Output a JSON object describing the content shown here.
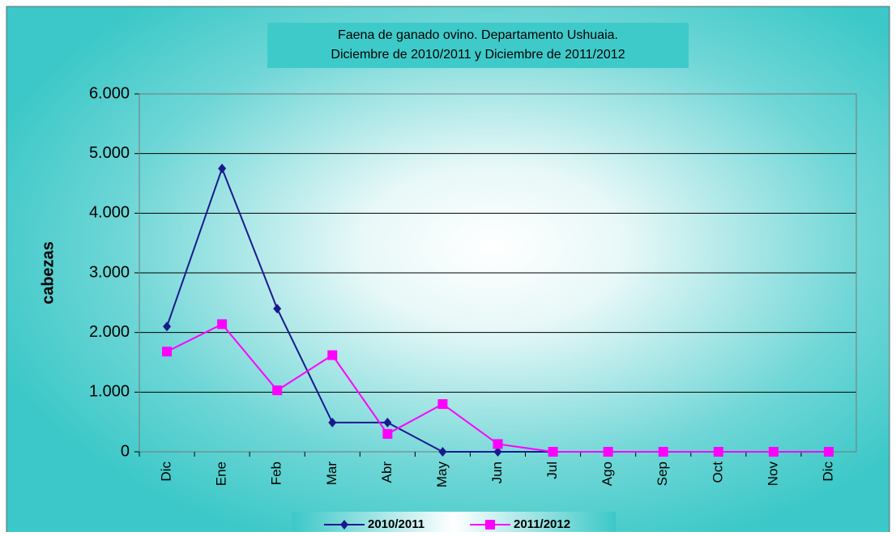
{
  "chart_data": {
    "type": "line",
    "title": [
      "Faena de ganado ovino. Departamento Ushuaia.",
      "Diciembre de 2010/2011  y Diciembre de 2011/2012"
    ],
    "ylabel": "cabezas",
    "categories": [
      "Dic",
      "Ene",
      "Feb",
      "Mar",
      "Abr",
      "May",
      "Jun",
      "Jul",
      "Ago",
      "Sep",
      "Oct",
      "Nov",
      "Dic"
    ],
    "series": [
      {
        "name": "2010/2011",
        "color": "#1a1a8c",
        "marker": "diamond",
        "values": [
          2100,
          4750,
          2400,
          490,
          490,
          0,
          0,
          0,
          0,
          0,
          0,
          0,
          0
        ]
      },
      {
        "name": "2011/2012",
        "color": "#ff00ff",
        "marker": "square",
        "values": [
          1680,
          2140,
          1030,
          1620,
          300,
          800,
          130,
          0,
          0,
          0,
          0,
          0,
          0
        ]
      }
    ],
    "ylim": [
      0,
      6000
    ],
    "yticks": [
      0,
      {
        "value": 1000,
        "label": "1.000"
      },
      {
        "value": 2000,
        "label": "2.000"
      },
      {
        "value": 3000,
        "label": "3.000"
      },
      {
        "value": 4000,
        "label": "4.000"
      },
      {
        "value": 5000,
        "label": "5.000"
      },
      {
        "value": 6000,
        "label": "6.000"
      }
    ],
    "grid": true,
    "legend": "bottom"
  }
}
